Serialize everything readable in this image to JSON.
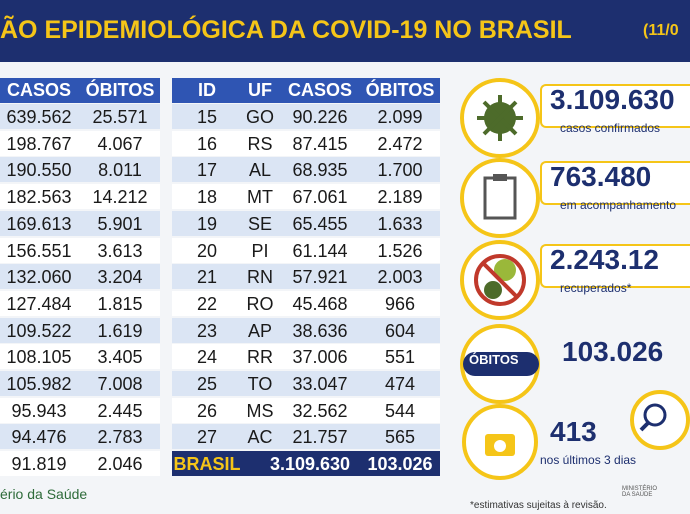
{
  "header": {
    "title": "ÃO EPIDEMIOLÓGICA DA COVID-19 NO BRASIL",
    "date": "(11/0"
  },
  "left_table": {
    "columns": [
      "CASOS",
      "ÓBITOS"
    ],
    "rows": [
      [
        "639.562",
        "25.571"
      ],
      [
        "198.767",
        "4.067"
      ],
      [
        "190.550",
        "8.011"
      ],
      [
        "182.563",
        "14.212"
      ],
      [
        "169.613",
        "5.901"
      ],
      [
        "156.551",
        "3.613"
      ],
      [
        "132.060",
        "3.204"
      ],
      [
        "127.484",
        "1.815"
      ],
      [
        "109.522",
        "1.619"
      ],
      [
        "108.105",
        "3.405"
      ],
      [
        "105.982",
        "7.008"
      ],
      [
        "95.943",
        "2.445"
      ],
      [
        "94.476",
        "2.783"
      ],
      [
        "91.819",
        "2.046"
      ]
    ]
  },
  "right_table": {
    "columns": [
      "ID",
      "UF",
      "CASOS",
      "ÓBITOS"
    ],
    "rows": [
      [
        "15",
        "GO",
        "90.226",
        "2.099"
      ],
      [
        "16",
        "RS",
        "87.415",
        "2.472"
      ],
      [
        "17",
        "AL",
        "68.935",
        "1.700"
      ],
      [
        "18",
        "MT",
        "67.061",
        "2.189"
      ],
      [
        "19",
        "SE",
        "65.455",
        "1.633"
      ],
      [
        "20",
        "PI",
        "61.144",
        "1.526"
      ],
      [
        "21",
        "RN",
        "57.921",
        "2.003"
      ],
      [
        "22",
        "RO",
        "45.468",
        "966"
      ],
      [
        "23",
        "AP",
        "38.636",
        "604"
      ],
      [
        "24",
        "RR",
        "37.006",
        "551"
      ],
      [
        "25",
        "TO",
        "33.047",
        "474"
      ],
      [
        "26",
        "MS",
        "32.562",
        "544"
      ],
      [
        "27",
        "AC",
        "21.757",
        "565"
      ]
    ],
    "total": [
      "BRASIL",
      "3.109.630",
      "103.026"
    ]
  },
  "stats": [
    {
      "value": "3.109.630",
      "label": "casos confirmados"
    },
    {
      "value": "763.480",
      "label": "em acompanhamento"
    },
    {
      "value": "2.243.12",
      "label": "recuperados*"
    },
    {
      "badge": "ÓBITOS",
      "value": "103.026"
    },
    {
      "value": "413",
      "label": "nos últimos 3 dias"
    }
  ],
  "footer": {
    "source": "ério da Saúde",
    "note": "*estimativas sujeitas à revisão.",
    "logo": "MINISTÉRIO DA SAÚDE"
  }
}
